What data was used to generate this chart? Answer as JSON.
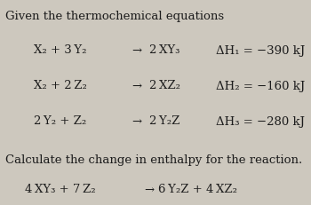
{
  "background_color": "#cdc8be",
  "title_text": "Given the thermochemical equations",
  "calc_text": "Calculate the change in enthalpy for the reaction.",
  "eq1_lhs": "X₂ + 3 Y₂",
  "eq1_rhs": "2 XY₃",
  "eq1_dh": "ΔH₁ = −390 kJ",
  "eq2_lhs": "X₂ + 2 Z₂",
  "eq2_rhs": "2 XZ₂",
  "eq2_dh": "ΔH₂ = −160 kJ",
  "eq3_lhs": "2 Y₂ + Z₂",
  "eq3_rhs": "2 Y₂Z",
  "eq3_dh": "ΔH₃ = −280 kJ",
  "final_lhs": "4 XY₃ + 7 Z₂",
  "final_rhs": "6 Y₂Z + 4 XZ₂",
  "arrow": "→",
  "font_size": 9.5,
  "small_font_size": 9.0,
  "text_color": "#1c1c1c"
}
